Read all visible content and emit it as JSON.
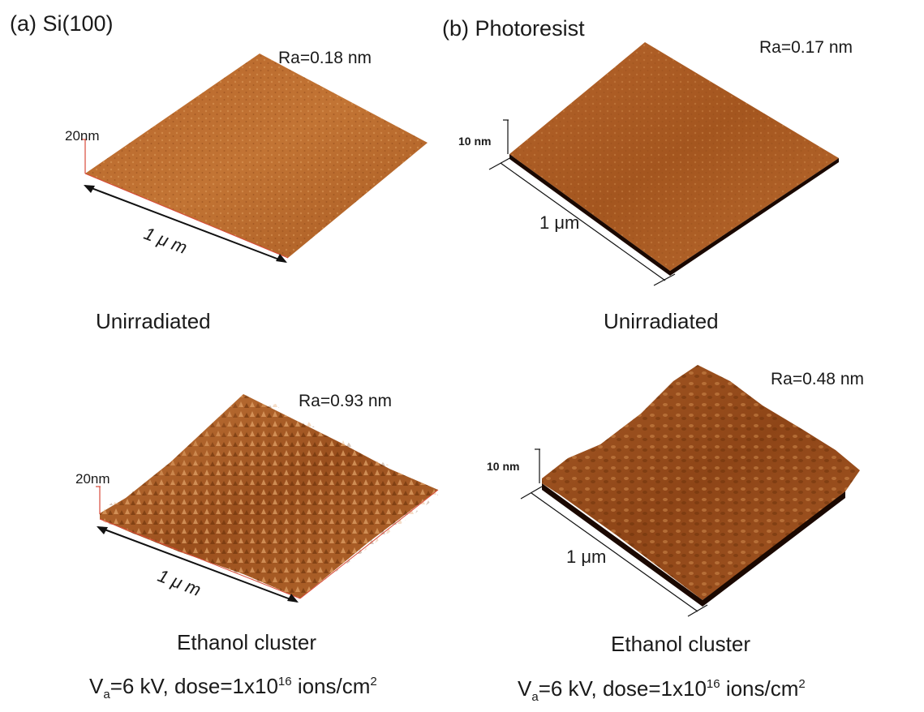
{
  "panel_a": {
    "title": "(a) Si(100)",
    "top": {
      "ra": "Ra=0.18 nm",
      "z_scale": "20nm",
      "length": "1 μ m"
    },
    "top_condition": "Unirradiated",
    "bottom": {
      "ra": "Ra=0.93 nm",
      "z_scale": "20nm",
      "length": "1 μ m"
    },
    "bottom_condition": "Ethanol cluster",
    "formula": {
      "v": "V",
      "sub": "a",
      "mid": "=6 kV, dose=1x10",
      "exp": "16",
      "tail": " ions/cm",
      "unit_exp": "2"
    }
  },
  "panel_b": {
    "title": "(b) Photoresist",
    "top": {
      "ra": "Ra=0.17 nm",
      "z_scale": "10 nm",
      "length": "1 μm"
    },
    "top_condition": "Unirradiated",
    "bottom": {
      "ra": "Ra=0.48 nm",
      "z_scale": "10 nm",
      "length": "1 μm"
    },
    "bottom_condition": "Ethanol cluster",
    "formula": {
      "v": "V",
      "sub": "a",
      "mid": "=6 kV, dose=1x10",
      "exp": "16",
      "tail": " ions/cm",
      "unit_exp": "2"
    }
  },
  "colors": {
    "surface_light": "#c87a3a",
    "surface_mid": "#a85a22",
    "surface_dark": "#5a2a0a",
    "axis_red": "#d84a3a"
  }
}
